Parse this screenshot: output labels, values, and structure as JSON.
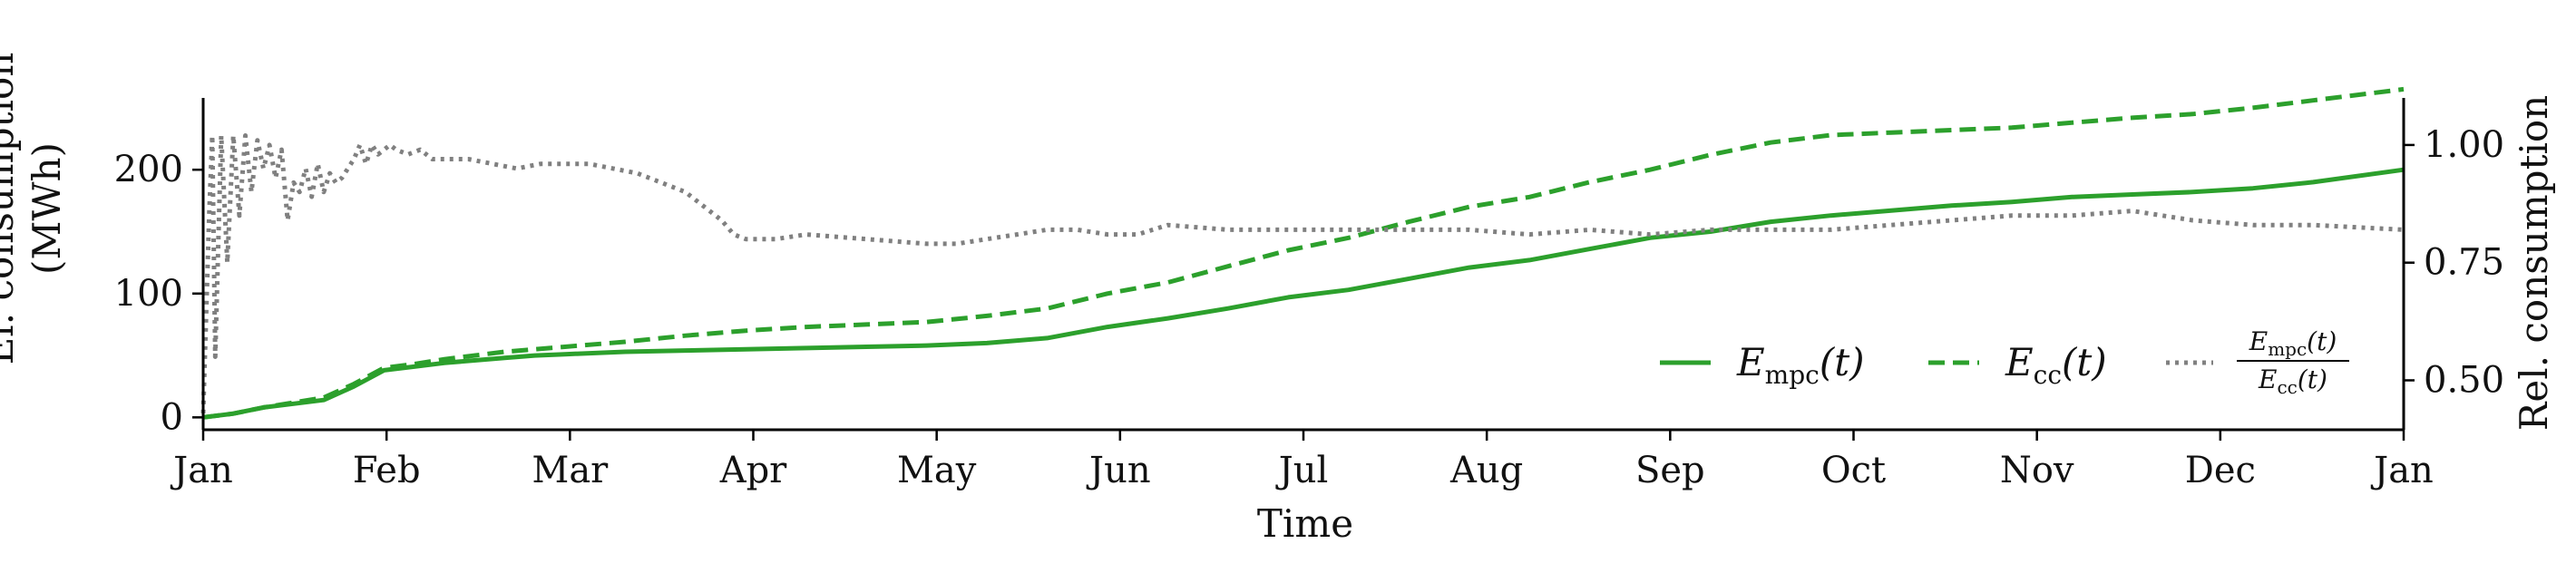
{
  "chart_data": {
    "type": "line",
    "xlabel": "Time",
    "ylabel_left_line1": "El. consumption",
    "ylabel_left_line2": "(MWh)",
    "ylabel_right": "Rel. consumption",
    "x_ticks": [
      "Jan",
      "Feb",
      "Mar",
      "Apr",
      "May",
      "Jun",
      "Jul",
      "Aug",
      "Sep",
      "Oct",
      "Nov",
      "Dec",
      "Jan"
    ],
    "x_range_days": [
      0,
      365
    ],
    "y_left": {
      "ticks": [
        0,
        100,
        200
      ],
      "ylim": [
        -10,
        258
      ]
    },
    "y_right": {
      "ticks": [
        "0.50",
        "0.75",
        "1.00"
      ],
      "tick_values": [
        0.5,
        0.75,
        1.0
      ],
      "ylim": [
        0.395,
        1.1
      ]
    },
    "legend": {
      "placement": "lower-right",
      "entries": [
        {
          "base": "E",
          "sub": "mpc",
          "suffix": "(t)"
        },
        {
          "base": "E",
          "sub": "cc",
          "suffix": "(t)"
        },
        {
          "num_base": "E",
          "num_sub": "mpc",
          "num_suffix": "(t)",
          "den_base": "E",
          "den_sub": "cc",
          "den_suffix": "(t)"
        }
      ]
    },
    "series": [
      {
        "key": "mpc",
        "style": "solid",
        "color": "#2ca02c",
        "axis": "left",
        "x": [
          0,
          5,
          10,
          15,
          20,
          25,
          30,
          35,
          40,
          45,
          50,
          55,
          60,
          70,
          80,
          90,
          100,
          110,
          120,
          130,
          140,
          150,
          160,
          170,
          180,
          190,
          200,
          210,
          220,
          230,
          240,
          250,
          260,
          270,
          280,
          290,
          300,
          310,
          320,
          330,
          340,
          350,
          365
        ],
        "y": [
          0,
          3,
          8,
          11,
          14,
          25,
          38,
          41,
          44,
          46,
          48,
          50,
          51,
          53,
          54,
          55,
          56,
          57,
          58,
          60,
          64,
          73,
          80,
          88,
          97,
          103,
          112,
          121,
          127,
          136,
          145,
          150,
          158,
          163,
          167,
          171,
          174,
          178,
          180,
          182,
          185,
          190,
          200
        ]
      },
      {
        "key": "cc",
        "style": "dashed",
        "color": "#2ca02c",
        "axis": "left",
        "x": [
          0,
          5,
          10,
          15,
          20,
          25,
          30,
          35,
          40,
          45,
          50,
          55,
          60,
          70,
          80,
          90,
          100,
          110,
          120,
          130,
          140,
          150,
          160,
          170,
          180,
          190,
          200,
          210,
          220,
          230,
          240,
          250,
          260,
          270,
          280,
          290,
          300,
          310,
          320,
          330,
          340,
          350,
          365
        ],
        "y": [
          0,
          3,
          8,
          12,
          16,
          27,
          40,
          43,
          47,
          50,
          53,
          55,
          57,
          61,
          66,
          70,
          73,
          75,
          77,
          82,
          88,
          100,
          109,
          122,
          135,
          145,
          158,
          170,
          178,
          190,
          200,
          212,
          222,
          228,
          230,
          232,
          234,
          238,
          242,
          245,
          250,
          256,
          265
        ]
      },
      {
        "key": "ratio",
        "style": "dotted",
        "color": "#808080",
        "axis": "right",
        "x": [
          0,
          1,
          1.5,
          2,
          3,
          4,
          5,
          6,
          7,
          8,
          9,
          10,
          11,
          12,
          13,
          14,
          15,
          16,
          17,
          18,
          19,
          20,
          21,
          22,
          23,
          24,
          25,
          26,
          27,
          28,
          29,
          30,
          31,
          32,
          34,
          36,
          38,
          40,
          44,
          48,
          52,
          56,
          60,
          64,
          68,
          72,
          76,
          80,
          84,
          86,
          88,
          90,
          92,
          95,
          100,
          110,
          120,
          125,
          130,
          135,
          140,
          145,
          150,
          155,
          160,
          170,
          180,
          190,
          200,
          210,
          220,
          230,
          240,
          250,
          260,
          270,
          280,
          290,
          300,
          310,
          320,
          330,
          340,
          350,
          365
        ],
        "y": [
          0.43,
          0.85,
          1.02,
          0.55,
          1.02,
          0.75,
          1.02,
          0.85,
          1.02,
          0.9,
          1.01,
          0.95,
          1.0,
          0.93,
          0.99,
          0.84,
          0.92,
          0.9,
          0.95,
          0.89,
          0.96,
          0.9,
          0.94,
          0.92,
          0.93,
          0.95,
          0.97,
          1.0,
          0.96,
          1.0,
          0.98,
          0.99,
          1.0,
          0.99,
          0.98,
          0.99,
          0.97,
          0.97,
          0.97,
          0.96,
          0.95,
          0.96,
          0.96,
          0.96,
          0.95,
          0.94,
          0.92,
          0.9,
          0.86,
          0.84,
          0.81,
          0.8,
          0.8,
          0.8,
          0.81,
          0.8,
          0.79,
          0.79,
          0.8,
          0.81,
          0.82,
          0.82,
          0.81,
          0.81,
          0.83,
          0.82,
          0.82,
          0.82,
          0.82,
          0.82,
          0.81,
          0.82,
          0.81,
          0.82,
          0.82,
          0.82,
          0.83,
          0.84,
          0.85,
          0.85,
          0.86,
          0.84,
          0.83,
          0.83,
          0.82
        ]
      }
    ]
  }
}
